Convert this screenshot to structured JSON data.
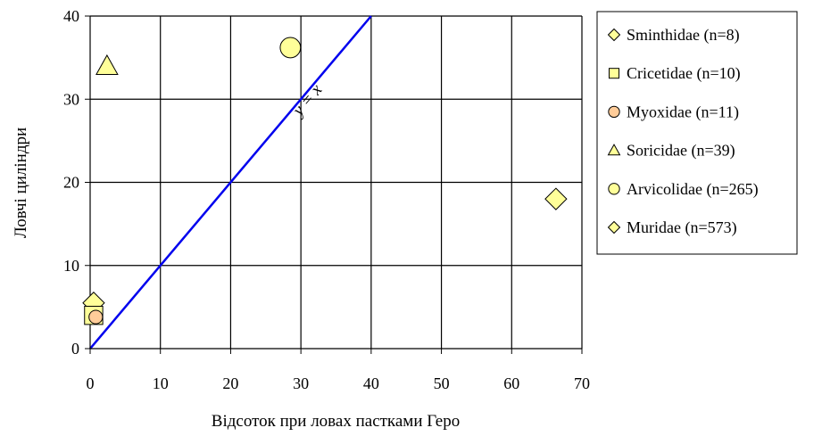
{
  "chart_data": {
    "type": "scatter",
    "title": "",
    "xlabel": "Відсоток при ловах пастками Геро",
    "ylabel": "Ловчі циліндри",
    "xlim": [
      0,
      70
    ],
    "ylim": [
      0,
      40
    ],
    "xticks": [
      0,
      10,
      20,
      30,
      40,
      50,
      60,
      70
    ],
    "yticks": [
      0,
      10,
      20,
      30,
      40
    ],
    "grid": true,
    "legend_position": "right",
    "reference_line": {
      "label": "y = x",
      "from": [
        0,
        0
      ],
      "to": [
        40,
        40
      ],
      "color": "#0000ee"
    },
    "series": [
      {
        "name": "Sminthidae (n=8)",
        "marker": "diamond",
        "color": "#ffff99",
        "x": 0.5,
        "y": 5.5
      },
      {
        "name": "Cricetidae (n=10)",
        "marker": "square",
        "color": "#ffff99",
        "x": 0.5,
        "y": 4.0
      },
      {
        "name": "Myoxidae (n=11)",
        "marker": "circle",
        "color": "#ffcc99",
        "x": 0.8,
        "y": 3.8
      },
      {
        "name": "Soricidae (n=39)",
        "marker": "triangle",
        "color": "#ffff99",
        "x": 2.4,
        "y": 34.0
      },
      {
        "name": "Arvicolidae (n=265)",
        "marker": "circle",
        "color": "#ffff99",
        "x": 28.5,
        "y": 36.2
      },
      {
        "name": "Muridae (n=573)",
        "marker": "diamond",
        "color": "#ffff99",
        "x": 66.3,
        "y": 18.0
      }
    ]
  }
}
